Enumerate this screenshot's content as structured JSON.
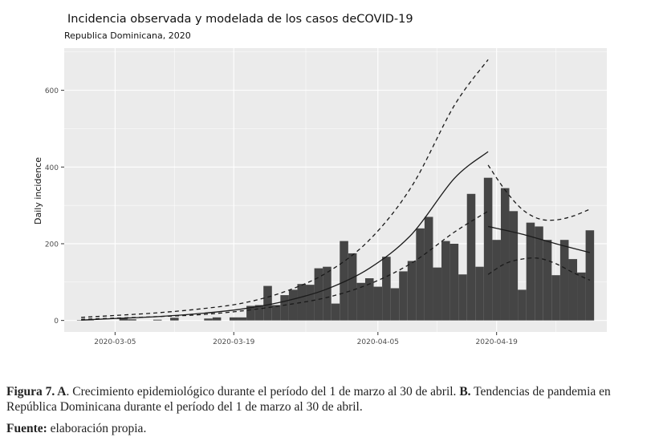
{
  "chart_data": {
    "type": "bar",
    "title": "Incidencia observada y modelada de los casos deCOVID-19",
    "subtitle": "Republica Dominicana, 2020",
    "ylabel": "Daily incidence",
    "xlabel": "",
    "ylim": [
      -30,
      710
    ],
    "yticks": [
      0,
      200,
      400,
      600
    ],
    "xticks": [
      "2020-03-05",
      "2020-03-19",
      "2020-04-05",
      "2020-04-19"
    ],
    "x_range": [
      "2020-02-28",
      "2020-05-02"
    ],
    "grid": true,
    "dates": [
      "2020-03-01",
      "2020-03-02",
      "2020-03-03",
      "2020-03-04",
      "2020-03-05",
      "2020-03-06",
      "2020-03-07",
      "2020-03-08",
      "2020-03-09",
      "2020-03-10",
      "2020-03-11",
      "2020-03-12",
      "2020-03-13",
      "2020-03-14",
      "2020-03-15",
      "2020-03-16",
      "2020-03-17",
      "2020-03-18",
      "2020-03-19",
      "2020-03-20",
      "2020-03-21",
      "2020-03-22",
      "2020-03-23",
      "2020-03-24",
      "2020-03-25",
      "2020-03-26",
      "2020-03-27",
      "2020-03-28",
      "2020-03-29",
      "2020-03-30",
      "2020-03-31",
      "2020-04-01",
      "2020-04-02",
      "2020-04-03",
      "2020-04-04",
      "2020-04-05",
      "2020-04-06",
      "2020-04-07",
      "2020-04-08",
      "2020-04-09",
      "2020-04-10",
      "2020-04-11",
      "2020-04-12",
      "2020-04-13",
      "2020-04-14",
      "2020-04-15",
      "2020-04-16",
      "2020-04-17",
      "2020-04-18",
      "2020-04-19",
      "2020-04-20",
      "2020-04-21",
      "2020-04-22",
      "2020-04-23",
      "2020-04-24",
      "2020-04-25",
      "2020-04-26",
      "2020-04-27",
      "2020-04-28",
      "2020-04-29",
      "2020-04-30"
    ],
    "values": [
      1,
      1,
      0,
      0,
      0,
      5,
      3,
      0,
      0,
      2,
      0,
      7,
      0,
      0,
      0,
      5,
      8,
      0,
      8,
      8,
      38,
      40,
      90,
      40,
      66,
      80,
      95,
      93,
      136,
      140,
      44,
      207,
      175,
      98,
      110,
      88,
      166,
      84,
      128,
      155,
      240,
      270,
      138,
      207,
      200,
      120,
      330,
      140,
      372,
      210,
      345,
      285,
      80,
      255,
      245,
      210,
      118,
      210,
      160,
      125,
      235
    ],
    "series": [
      {
        "style": "solid",
        "segment": "growth",
        "x": [
          "2020-03-01",
          "2020-03-05",
          "2020-03-10",
          "2020-03-15",
          "2020-03-20",
          "2020-03-25",
          "2020-03-30",
          "2020-04-04",
          "2020-04-09",
          "2020-04-14",
          "2020-04-18"
        ],
        "values": [
          1,
          5,
          10,
          18,
          30,
          50,
          82,
          136,
          225,
          370,
          440
        ]
      },
      {
        "style": "dashed",
        "segment": "growth-upper",
        "x": [
          "2020-03-01",
          "2020-03-05",
          "2020-03-10",
          "2020-03-15",
          "2020-03-20",
          "2020-03-25",
          "2020-03-30",
          "2020-04-04",
          "2020-04-09",
          "2020-04-14",
          "2020-04-18"
        ],
        "values": [
          8,
          13,
          20,
          30,
          45,
          75,
          125,
          210,
          350,
          560,
          680
        ]
      },
      {
        "style": "dashed",
        "segment": "growth-lower",
        "x": [
          "2020-03-01",
          "2020-03-05",
          "2020-03-10",
          "2020-03-15",
          "2020-03-20",
          "2020-03-25",
          "2020-03-30",
          "2020-04-04",
          "2020-04-09",
          "2020-04-14",
          "2020-04-18"
        ],
        "values": [
          3,
          6,
          10,
          15,
          25,
          40,
          60,
          95,
          150,
          230,
          285
        ]
      },
      {
        "style": "solid",
        "segment": "decline",
        "x": [
          "2020-04-18",
          "2020-04-22",
          "2020-04-26",
          "2020-04-30"
        ],
        "values": [
          245,
          225,
          200,
          177
        ]
      },
      {
        "style": "dashed",
        "segment": "decline-upper",
        "x": [
          "2020-04-18",
          "2020-04-20",
          "2020-04-22",
          "2020-04-24",
          "2020-04-26",
          "2020-04-28",
          "2020-04-30"
        ],
        "values": [
          405,
          340,
          290,
          265,
          262,
          272,
          290
        ]
      },
      {
        "style": "dashed",
        "segment": "decline-lower",
        "x": [
          "2020-04-18",
          "2020-04-20",
          "2020-04-22",
          "2020-04-24",
          "2020-04-26",
          "2020-04-28",
          "2020-04-30"
        ],
        "values": [
          120,
          148,
          160,
          162,
          148,
          125,
          105
        ]
      }
    ]
  },
  "caption": {
    "fig_label": "Figura 7. A",
    "part_a": ". Crecimiento epidemiológico durante el período del 1 de marzo al 30 de abril. ",
    "b_label": "B.",
    "part_b": " Tendencias de pandemia en República Dominicana durante el período del 1 de marzo al 30 de abril."
  },
  "source": {
    "label": "Fuente:",
    "text": " elaboración propia."
  },
  "colors": {
    "panel": "#ebebeb",
    "grid": "#ffffff",
    "bar": "#454545",
    "line": "#1a1a1a"
  }
}
